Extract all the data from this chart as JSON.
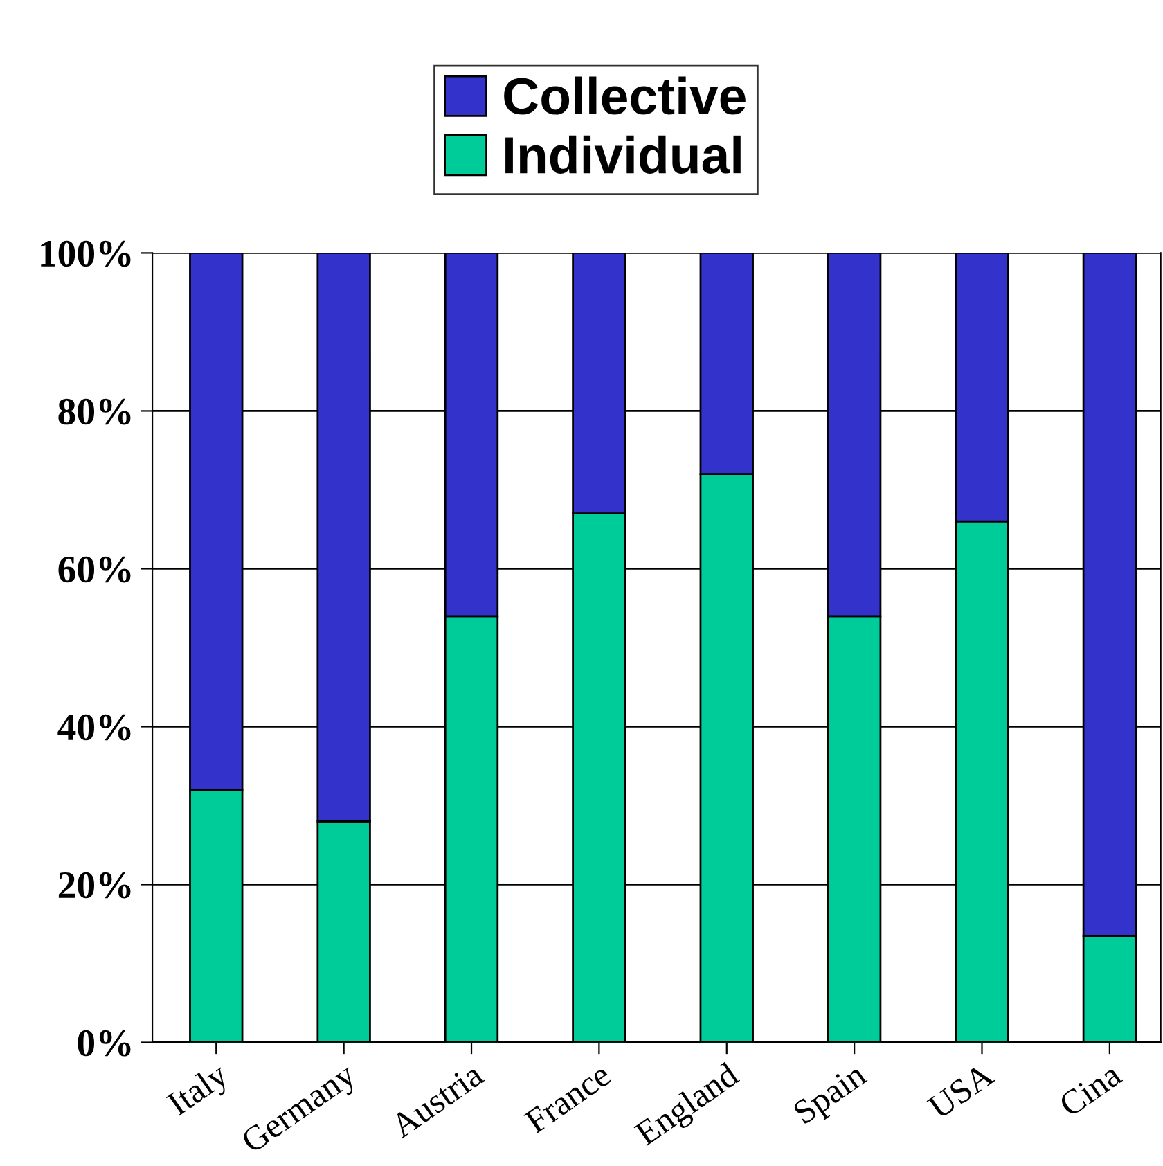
{
  "chart_data": {
    "type": "bar",
    "stacked": true,
    "categories": [
      "Italy",
      "Germany",
      "Austria",
      "France",
      "England",
      "Spain",
      "USA",
      "Cina"
    ],
    "series": [
      {
        "name": "Individual",
        "color": "#00cc99",
        "values": [
          32,
          28,
          54,
          67,
          72,
          54,
          66,
          13.5
        ]
      },
      {
        "name": "Collective",
        "color": "#3333cc",
        "values": [
          68,
          72,
          46,
          33,
          28,
          46,
          34,
          86.5
        ]
      }
    ],
    "ylim": [
      0,
      100
    ],
    "yticks": [
      {
        "value": 0,
        "label": "0%"
      },
      {
        "value": 20,
        "label": "20%"
      },
      {
        "value": 40,
        "label": "40%"
      },
      {
        "value": 60,
        "label": "60%"
      },
      {
        "value": 80,
        "label": "80%"
      },
      {
        "value": 100,
        "label": "100%"
      }
    ],
    "grid": "y",
    "legend": "top"
  }
}
